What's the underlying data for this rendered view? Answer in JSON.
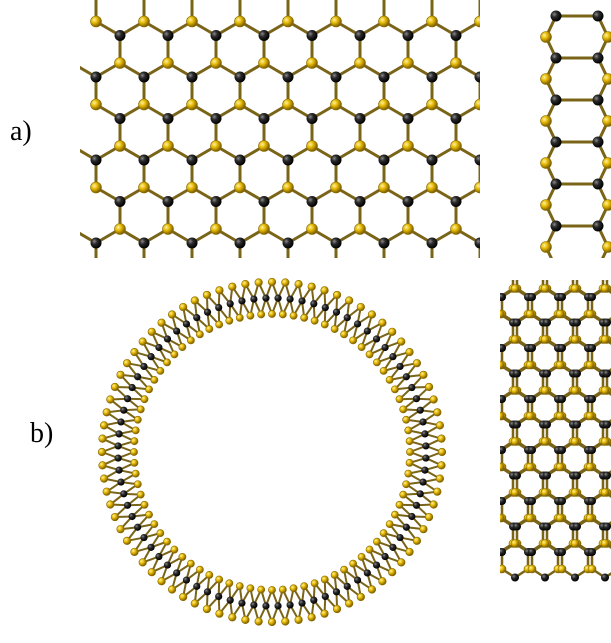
{
  "panels": [
    {
      "label": "a)"
    },
    {
      "label": "b)"
    }
  ],
  "colors": {
    "background": "#ffffff",
    "bond": "#7a6418",
    "atom_gold": "#e6b800",
    "atom_gold_edge": "#8a6d00",
    "atom_black": "#202020"
  }
}
